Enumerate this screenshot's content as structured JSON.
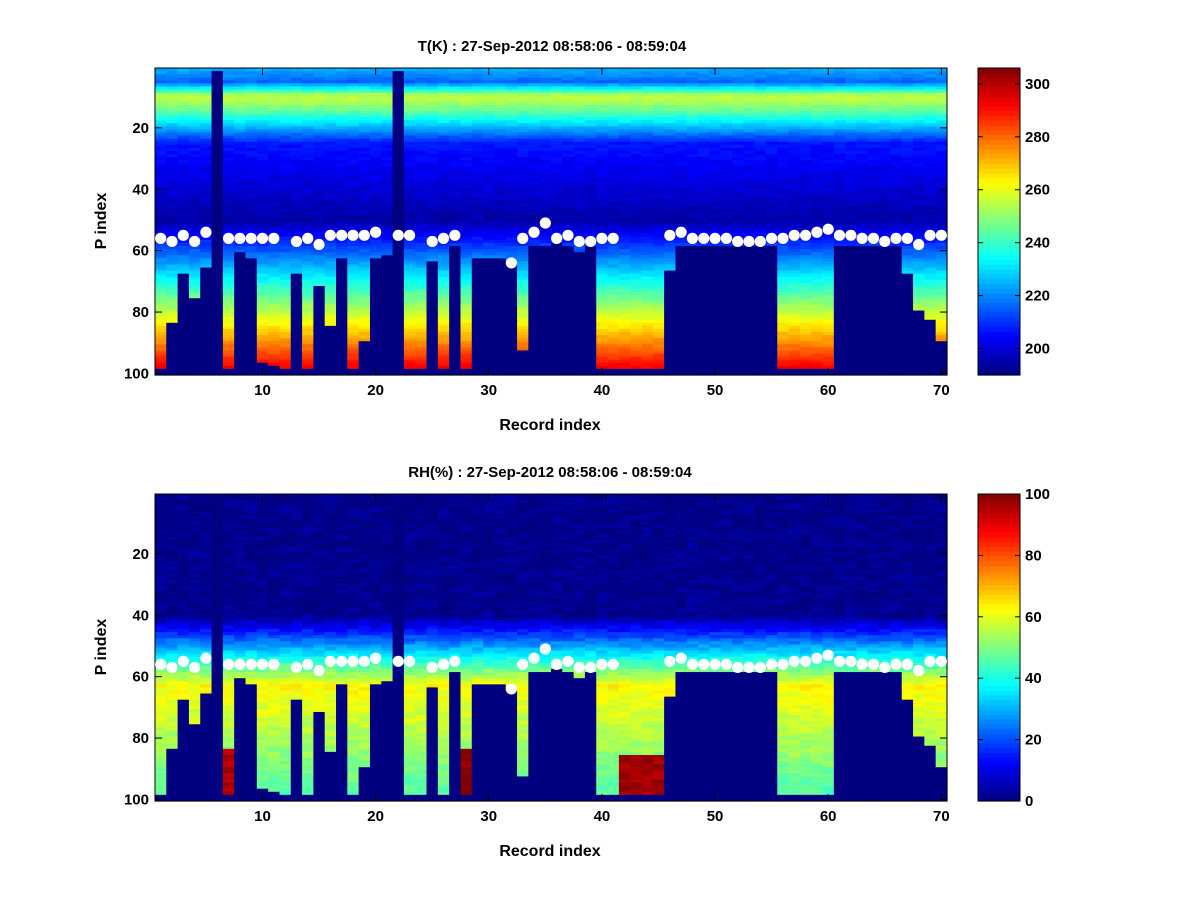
{
  "chart_data": [
    {
      "type": "heatmap",
      "title": "T(K) : 27-Sep-2012 08:58:06 - 08:59:04",
      "xlabel": "Record index",
      "ylabel": "P index",
      "xlim": [
        0.5,
        70.5
      ],
      "ylim": [
        0.5,
        100.5
      ],
      "y_reversed": true,
      "xticks": [
        10,
        20,
        30,
        40,
        50,
        60,
        70
      ],
      "yticks": [
        20,
        40,
        60,
        80,
        100
      ],
      "colorbar": {
        "min": 190,
        "max": 306,
        "ticks": [
          200,
          220,
          240,
          260,
          280,
          300
        ],
        "colormap": "jet"
      },
      "records": 70,
      "levels": 100,
      "invalid_bottom": [
        98,
        83,
        67,
        75,
        65,
        1,
        98,
        60,
        62,
        96,
        97,
        98,
        67,
        98,
        71,
        84,
        62,
        98,
        89,
        62,
        61,
        1,
        98,
        98,
        63,
        98,
        58,
        98,
        62,
        62,
        62,
        98,
        92,
        98,
        98,
        98,
        98,
        98,
        98,
        98,
        98,
        98,
        98,
        98,
        98,
        98,
        98,
        98,
        98,
        98,
        98,
        98,
        98,
        98,
        98,
        98,
        98,
        98,
        98,
        98,
        98,
        98,
        98,
        98,
        98,
        98,
        98,
        79,
        82,
        89
      ],
      "invalid_top": [
        0,
        0,
        0,
        0,
        0,
        0,
        0,
        0,
        0,
        0,
        0,
        0,
        0,
        0,
        0,
        0,
        0,
        0,
        0,
        0,
        0,
        0,
        0,
        0,
        0,
        0,
        0,
        0,
        0,
        0,
        0,
        64,
        0,
        58,
        58,
        57,
        58,
        60,
        58,
        0,
        0,
        0,
        0,
        0,
        0,
        66,
        58,
        58,
        58,
        58,
        58,
        58,
        58,
        58,
        58,
        0,
        0,
        0,
        0,
        0,
        58,
        58,
        58,
        58,
        58,
        58,
        67,
        0,
        0,
        0
      ],
      "markers_p": [
        56,
        57,
        55,
        57,
        54,
        0,
        56,
        56,
        56,
        56,
        56,
        0,
        57,
        56,
        58,
        55,
        55,
        55,
        55,
        54,
        0,
        55,
        55,
        0,
        57,
        56,
        55,
        0,
        0,
        0,
        0,
        64,
        56,
        54,
        51,
        56,
        55,
        57,
        57,
        56,
        56,
        0,
        0,
        0,
        0,
        55,
        54,
        56,
        56,
        56,
        56,
        57,
        57,
        57,
        56,
        56,
        55,
        55,
        54,
        53,
        55,
        55,
        56,
        56,
        57,
        56,
        56,
        58,
        55,
        55
      ]
    },
    {
      "type": "heatmap",
      "title": "RH(%) : 27-Sep-2012 08:58:06 - 08:59:04",
      "xlabel": "Record index",
      "ylabel": "P index",
      "xlim": [
        0.5,
        70.5
      ],
      "ylim": [
        0.5,
        100.5
      ],
      "y_reversed": true,
      "xticks": [
        10,
        20,
        30,
        40,
        50,
        60,
        70
      ],
      "yticks": [
        20,
        40,
        60,
        80,
        100
      ],
      "colorbar": {
        "min": 0,
        "max": 100,
        "ticks": [
          0,
          20,
          40,
          60,
          80,
          100
        ],
        "colormap": "jet"
      },
      "records": 70,
      "levels": 100,
      "invalid_bottom": [
        98,
        83,
        67,
        75,
        65,
        1,
        98,
        60,
        62,
        96,
        97,
        98,
        67,
        98,
        71,
        84,
        62,
        98,
        89,
        62,
        61,
        1,
        98,
        98,
        63,
        98,
        58,
        98,
        62,
        62,
        62,
        98,
        92,
        98,
        98,
        98,
        98,
        98,
        98,
        98,
        98,
        98,
        98,
        98,
        98,
        98,
        98,
        98,
        98,
        98,
        98,
        98,
        98,
        98,
        98,
        98,
        98,
        98,
        98,
        98,
        98,
        98,
        98,
        98,
        98,
        98,
        98,
        79,
        82,
        89
      ],
      "invalid_top": [
        0,
        0,
        0,
        0,
        0,
        0,
        0,
        0,
        0,
        0,
        0,
        0,
        0,
        0,
        0,
        0,
        0,
        0,
        0,
        0,
        0,
        0,
        0,
        0,
        0,
        0,
        0,
        0,
        0,
        0,
        0,
        64,
        0,
        58,
        58,
        57,
        58,
        60,
        58,
        0,
        0,
        0,
        0,
        0,
        0,
        66,
        58,
        58,
        58,
        58,
        58,
        58,
        58,
        58,
        58,
        0,
        0,
        0,
        0,
        0,
        58,
        58,
        58,
        58,
        58,
        58,
        67,
        0,
        0,
        0
      ],
      "markers_p": [
        56,
        57,
        55,
        57,
        54,
        0,
        56,
        56,
        56,
        56,
        56,
        0,
        57,
        56,
        58,
        55,
        55,
        55,
        55,
        54,
        0,
        55,
        55,
        0,
        57,
        56,
        55,
        0,
        0,
        0,
        0,
        64,
        56,
        54,
        51,
        56,
        55,
        57,
        57,
        56,
        56,
        0,
        0,
        0,
        0,
        55,
        54,
        56,
        56,
        56,
        56,
        57,
        57,
        57,
        56,
        56,
        55,
        55,
        54,
        53,
        55,
        55,
        56,
        56,
        57,
        56,
        56,
        58,
        55,
        55
      ]
    }
  ]
}
